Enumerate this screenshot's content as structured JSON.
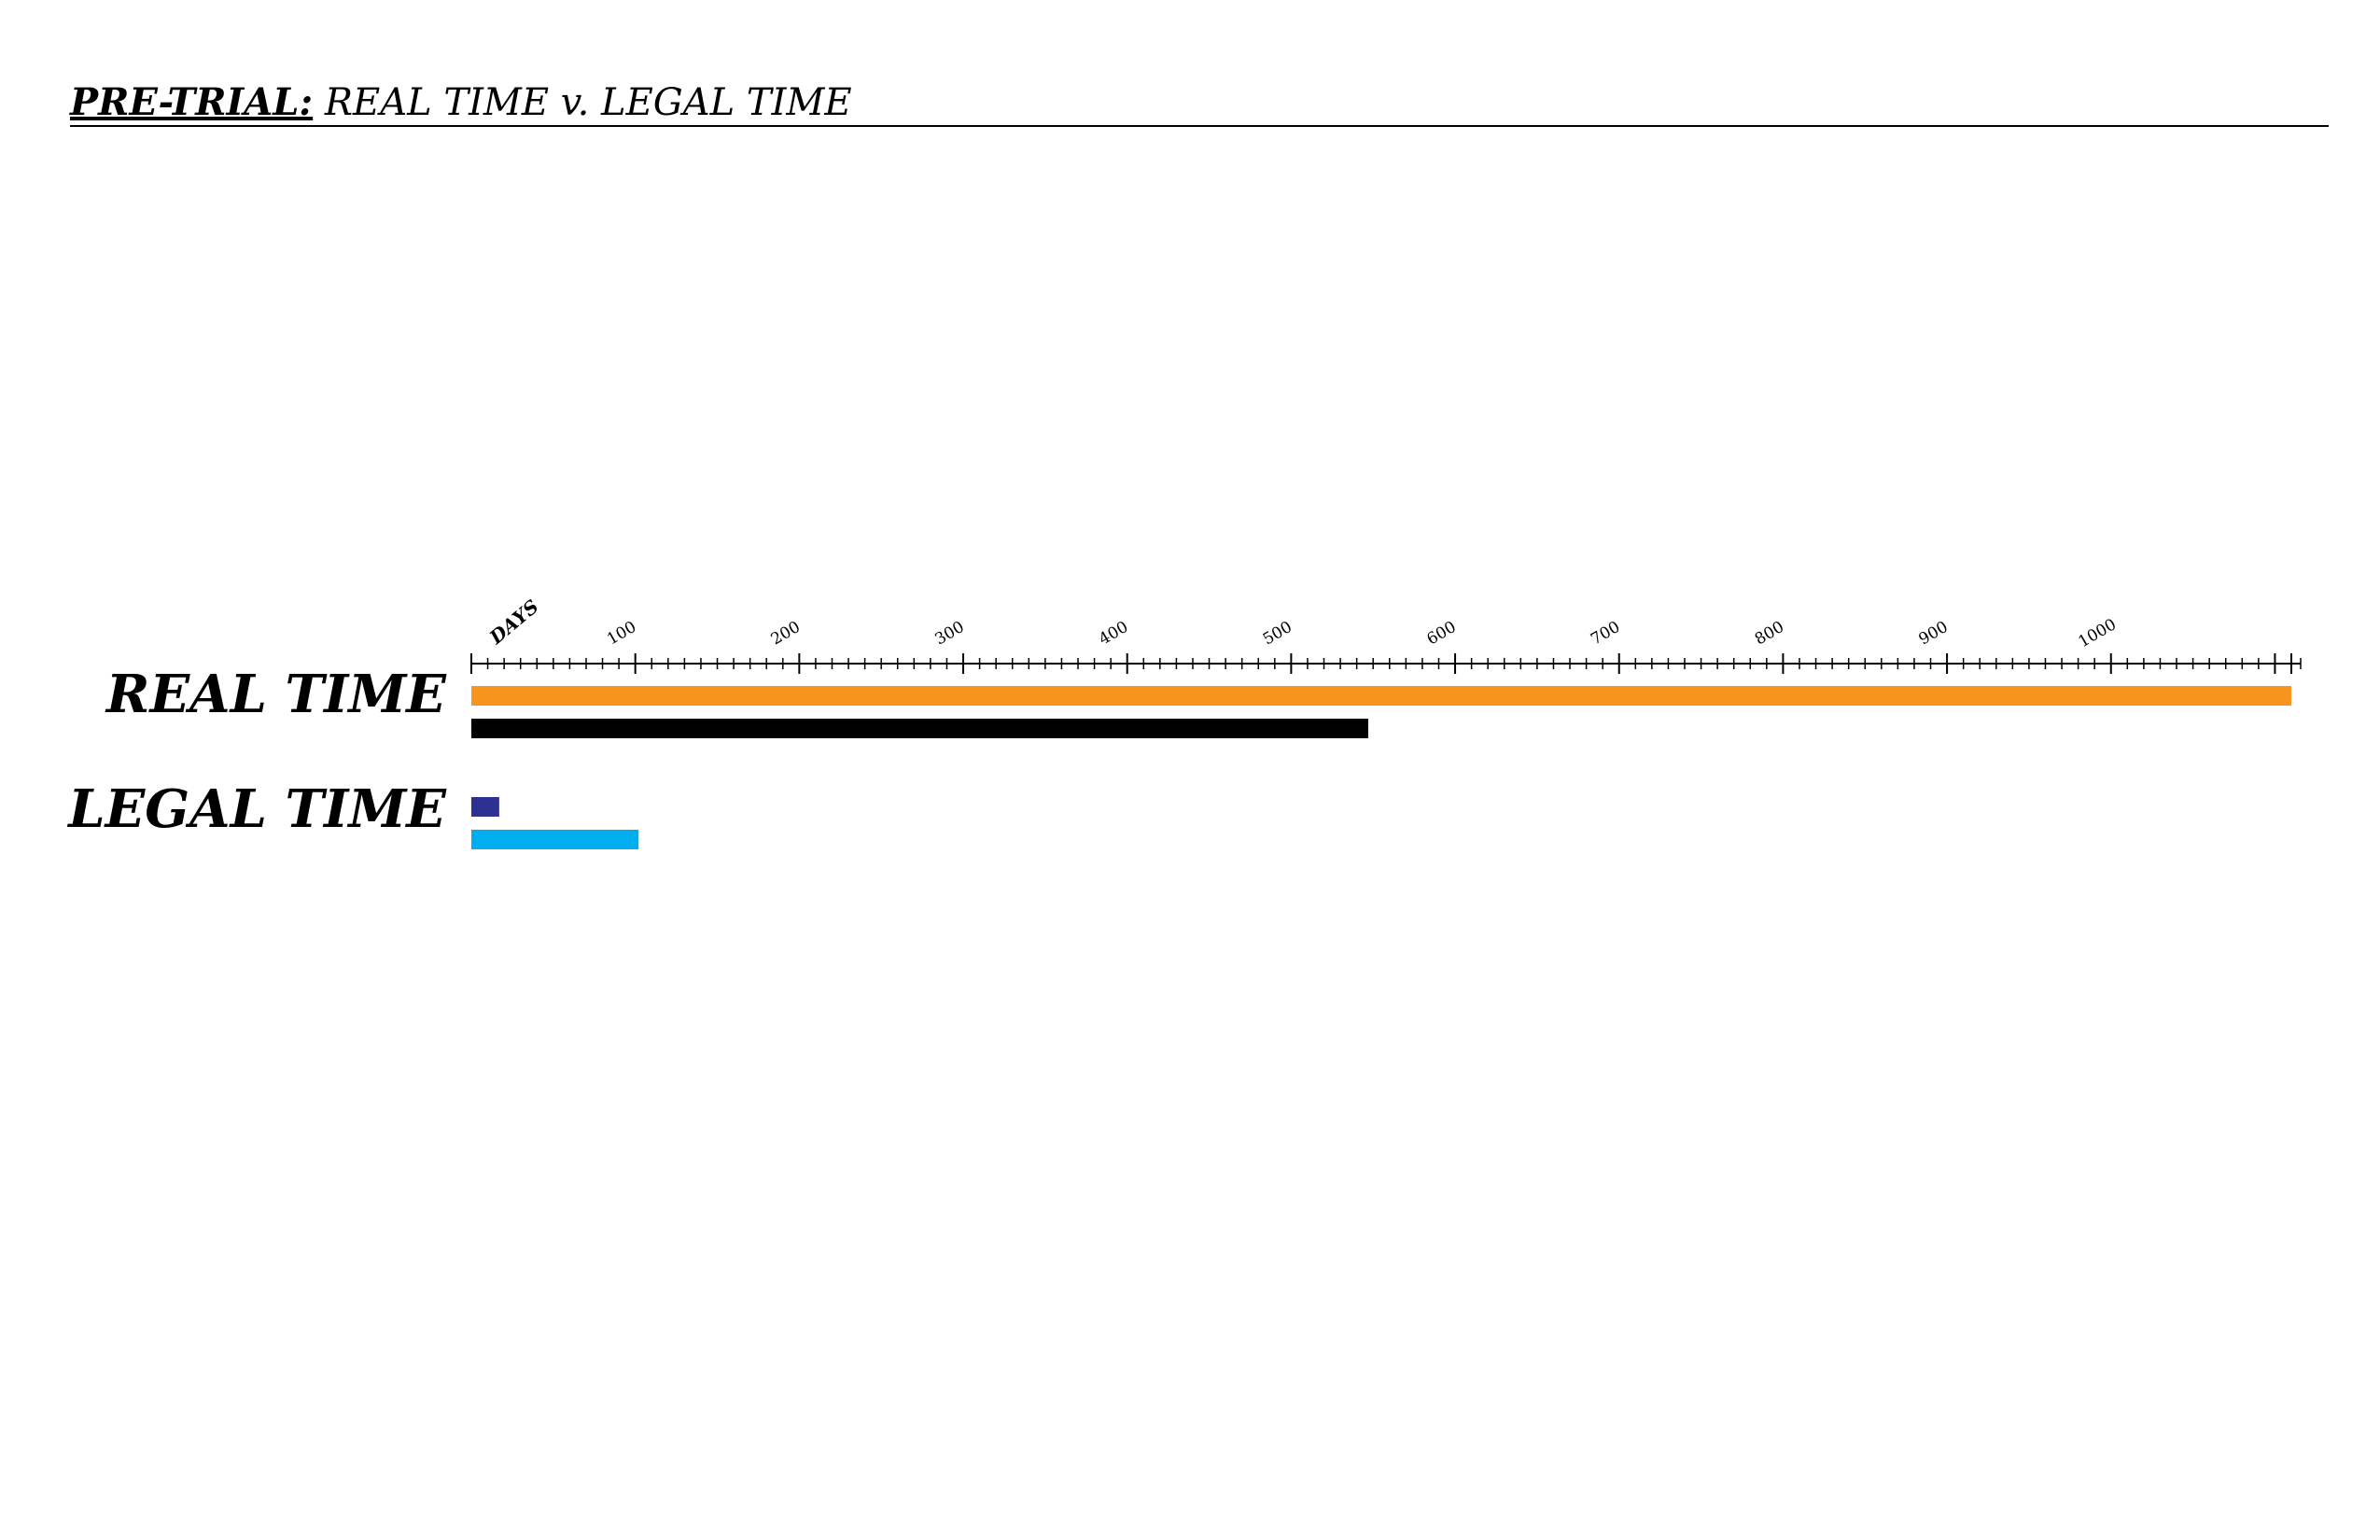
{
  "header": {
    "title_bold": "PRE-TRIAL:",
    "title_rest": "REAL TIME v. LEGAL TIME"
  },
  "chart_data": {
    "type": "bar",
    "orientation": "horizontal",
    "title": "PRE-TRIAL: REAL TIME v. LEGAL TIME",
    "xlabel": "DAYS",
    "xlim": [
      0,
      1110
    ],
    "x_ticks": [
      100,
      200,
      300,
      400,
      500,
      600,
      700,
      800,
      900,
      1000
    ],
    "minor_tick_interval": 10,
    "groups": [
      {
        "label": "REAL TIME",
        "bars": [
          {
            "value": 1110,
            "color": "#F7941E"
          },
          {
            "value": 547,
            "color": "#000000"
          }
        ]
      },
      {
        "label": "LEGAL TIME",
        "bars": [
          {
            "value": 17,
            "color": "#2E3192"
          },
          {
            "value": 102,
            "color": "#00AEEF"
          }
        ]
      }
    ],
    "grid": false,
    "legend": "none"
  }
}
